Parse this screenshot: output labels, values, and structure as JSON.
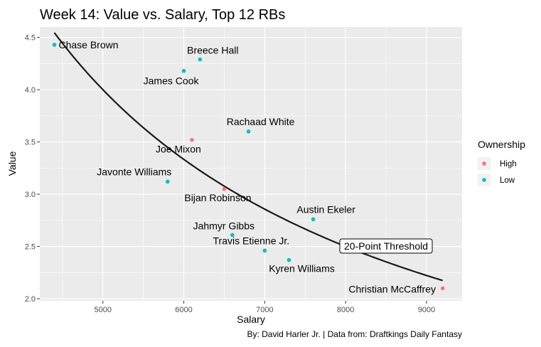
{
  "chart_data": {
    "type": "scatter",
    "title": "Week 14: Value vs. Salary, Top 12 RBs",
    "xlabel": "Salary",
    "ylabel": "Value",
    "xlim": [
      4220,
      9440
    ],
    "ylim": [
      1.98,
      4.6
    ],
    "x_ticks": [
      5000,
      6000,
      7000,
      8000,
      9000
    ],
    "y_ticks": [
      2.0,
      2.5,
      3.0,
      3.5,
      4.0,
      4.5
    ],
    "grid": true,
    "legend": {
      "title": "Ownership",
      "position": "right",
      "entries": [
        {
          "label": "High",
          "color": "#F8766D"
        },
        {
          "label": "Low",
          "color": "#00BFC4"
        }
      ]
    },
    "points": [
      {
        "name": "Chase Brown",
        "x": 4400,
        "y": 4.43,
        "ownership": "Low"
      },
      {
        "name": "Breece Hall",
        "x": 6200,
        "y": 4.29,
        "ownership": "Low"
      },
      {
        "name": "James Cook",
        "x": 6000,
        "y": 4.18,
        "ownership": "Low"
      },
      {
        "name": "Rachaad White",
        "x": 6800,
        "y": 3.6,
        "ownership": "Low"
      },
      {
        "name": "Joe Mixon",
        "x": 6100,
        "y": 3.52,
        "ownership": "High"
      },
      {
        "name": "Javonte Williams",
        "x": 5800,
        "y": 3.12,
        "ownership": "Low"
      },
      {
        "name": "Bijan Robinson",
        "x": 6500,
        "y": 3.05,
        "ownership": "High"
      },
      {
        "name": "Austin Ekeler",
        "x": 7600,
        "y": 2.76,
        "ownership": "Low"
      },
      {
        "name": "Jahmyr Gibbs",
        "x": 6600,
        "y": 2.61,
        "ownership": "Low"
      },
      {
        "name": "Travis Etienne Jr.",
        "x": 7000,
        "y": 2.46,
        "ownership": "Low"
      },
      {
        "name": "Kyren Williams",
        "x": 7300,
        "y": 2.37,
        "ownership": "Low"
      },
      {
        "name": "Christian McCaffrey",
        "x": 9200,
        "y": 2.1,
        "ownership": "High"
      }
    ],
    "threshold": {
      "label": "20-Point Threshold",
      "points": 20,
      "x_range": [
        4400,
        9200
      ]
    },
    "caption": "By: David Harler Jr. | Data from: Draftkings Daily Fantasy"
  },
  "colors": {
    "panel": "#EBEBEB",
    "grid": "#FFFFFF",
    "high": "#F8766D",
    "low": "#00BFC4",
    "line": "#1a1a1a"
  }
}
